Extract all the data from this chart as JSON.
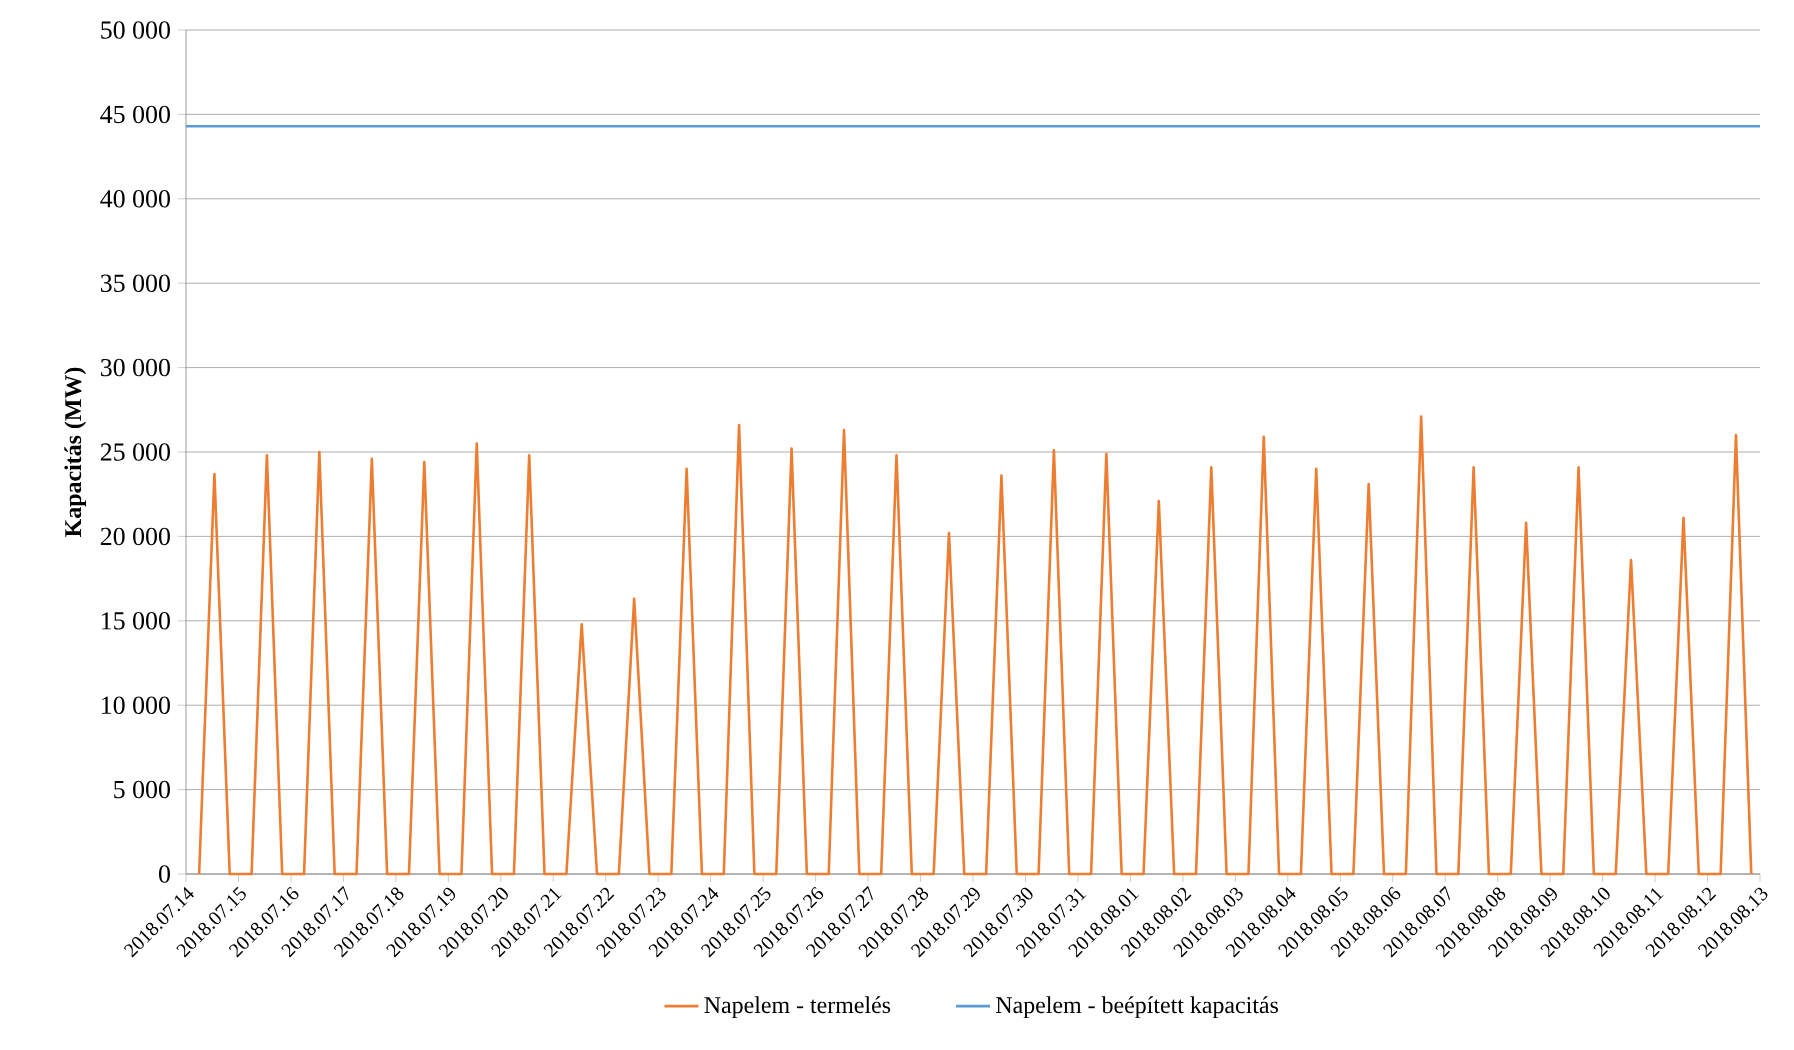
{
  "chart_data": {
    "type": "line",
    "ylabel": "Kapacitás (MW)",
    "xlim": [
      "2018-07-14",
      "2018-08-13"
    ],
    "xticks": [
      {
        "value": "2018-07-14",
        "label": "2018.07.14"
      },
      {
        "value": "2018-07-15",
        "label": "2018.07.15"
      },
      {
        "value": "2018-07-16",
        "label": "2018.07.16"
      },
      {
        "value": "2018-07-17",
        "label": "2018.07.17"
      },
      {
        "value": "2018-07-18",
        "label": "2018.07.18"
      },
      {
        "value": "2018-07-19",
        "label": "2018.07.19"
      },
      {
        "value": "2018-07-20",
        "label": "2018.07.20"
      },
      {
        "value": "2018-07-21",
        "label": "2018.07.21"
      },
      {
        "value": "2018-07-22",
        "label": "2018.07.22"
      },
      {
        "value": "2018-07-23",
        "label": "2018.07.23"
      },
      {
        "value": "2018-07-24",
        "label": "2018.07.24"
      },
      {
        "value": "2018-07-25",
        "label": "2018.07.25"
      },
      {
        "value": "2018-07-26",
        "label": "2018.07.26"
      },
      {
        "value": "2018-07-27",
        "label": "2018.07.27"
      },
      {
        "value": "2018-07-28",
        "label": "2018.07.28"
      },
      {
        "value": "2018-07-29",
        "label": "2018.07.29"
      },
      {
        "value": "2018-07-30",
        "label": "2018.07.30"
      },
      {
        "value": "2018-07-31",
        "label": "2018.07.31"
      },
      {
        "value": "2018-08-01",
        "label": "2018.08.01"
      },
      {
        "value": "2018-08-02",
        "label": "2018.08.02"
      },
      {
        "value": "2018-08-03",
        "label": "2018.08.03"
      },
      {
        "value": "2018-08-04",
        "label": "2018.08.04"
      },
      {
        "value": "2018-08-05",
        "label": "2018.08.05"
      },
      {
        "value": "2018-08-06",
        "label": "2018.08.06"
      },
      {
        "value": "2018-08-07",
        "label": "2018.08.07"
      },
      {
        "value": "2018-08-08",
        "label": "2018.08.08"
      },
      {
        "value": "2018-08-09",
        "label": "2018.08.09"
      },
      {
        "value": "2018-08-10",
        "label": "2018.08.10"
      },
      {
        "value": "2018-08-11",
        "label": "2018.08.11"
      },
      {
        "value": "2018-08-12",
        "label": "2018.08.12"
      },
      {
        "value": "2018-08-13",
        "label": "2018.08.13"
      }
    ],
    "ylim": [
      0,
      50000
    ],
    "yticks": [
      0,
      {
        "value": 5000,
        "label": "5 000"
      },
      {
        "value": 10000,
        "label": "10 000"
      },
      {
        "value": 15000,
        "label": "15 000"
      },
      {
        "value": 20000,
        "label": "20 000"
      },
      {
        "value": 25000,
        "label": "25 000"
      },
      {
        "value": 30000,
        "label": "30 000"
      },
      {
        "value": 35000,
        "label": "35 000"
      },
      {
        "value": 40000,
        "label": "40 000"
      },
      {
        "value": 45000,
        "label": "45 000"
      },
      {
        "value": 50000,
        "label": "50 000"
      }
    ],
    "grid": "y",
    "legend": "bottom",
    "marker": "none",
    "series": [
      {
        "name": "Napelem - termelés",
        "color": "#ed7d31",
        "x": [
          "2018-07-14T06:00",
          "2018-07-14T09:30",
          "2018-07-14T13:00",
          "2018-07-14T16:30",
          "2018-07-14T20:00",
          "2018-07-15T06:00",
          "2018-07-15T09:30",
          "2018-07-15T13:00",
          "2018-07-15T16:30",
          "2018-07-15T20:00",
          "2018-07-16T06:00",
          "2018-07-16T09:30",
          "2018-07-16T13:00",
          "2018-07-16T16:30",
          "2018-07-16T20:00",
          "2018-07-17T06:00",
          "2018-07-17T09:30",
          "2018-07-17T13:00",
          "2018-07-17T16:30",
          "2018-07-17T20:00",
          "2018-07-18T06:00",
          "2018-07-18T09:30",
          "2018-07-18T13:00",
          "2018-07-18T16:30",
          "2018-07-18T20:00",
          "2018-07-19T06:00",
          "2018-07-19T09:30",
          "2018-07-19T13:00",
          "2018-07-19T16:30",
          "2018-07-19T20:00",
          "2018-07-20T06:00",
          "2018-07-20T09:30",
          "2018-07-20T13:00",
          "2018-07-20T16:30",
          "2018-07-20T20:00",
          "2018-07-21T06:00",
          "2018-07-21T09:30",
          "2018-07-21T13:00",
          "2018-07-21T16:30",
          "2018-07-21T20:00",
          "2018-07-22T06:00",
          "2018-07-22T09:30",
          "2018-07-22T13:00",
          "2018-07-22T16:30",
          "2018-07-22T20:00",
          "2018-07-23T06:00",
          "2018-07-23T09:30",
          "2018-07-23T13:00",
          "2018-07-23T16:30",
          "2018-07-23T20:00",
          "2018-07-24T06:00",
          "2018-07-24T09:30",
          "2018-07-24T13:00",
          "2018-07-24T16:30",
          "2018-07-24T20:00",
          "2018-07-25T06:00",
          "2018-07-25T09:30",
          "2018-07-25T13:00",
          "2018-07-25T16:30",
          "2018-07-25T20:00",
          "2018-07-26T06:00",
          "2018-07-26T09:30",
          "2018-07-26T13:00",
          "2018-07-26T16:30",
          "2018-07-26T20:00",
          "2018-07-27T06:00",
          "2018-07-27T09:30",
          "2018-07-27T13:00",
          "2018-07-27T16:30",
          "2018-07-27T20:00",
          "2018-07-28T06:00",
          "2018-07-28T09:30",
          "2018-07-28T13:00",
          "2018-07-28T16:30",
          "2018-07-28T20:00",
          "2018-07-29T06:00",
          "2018-07-29T09:30",
          "2018-07-29T13:00",
          "2018-07-29T16:30",
          "2018-07-29T20:00",
          "2018-07-30T06:00",
          "2018-07-30T09:30",
          "2018-07-30T13:00",
          "2018-07-30T16:30",
          "2018-07-30T20:00",
          "2018-07-31T06:00",
          "2018-07-31T09:30",
          "2018-07-31T13:00",
          "2018-07-31T16:30",
          "2018-07-31T20:00",
          "2018-08-01T06:00",
          "2018-08-01T09:30",
          "2018-08-01T13:00",
          "2018-08-01T16:30",
          "2018-08-01T20:00",
          "2018-08-02T06:00",
          "2018-08-02T09:30",
          "2018-08-02T13:00",
          "2018-08-02T16:30",
          "2018-08-02T20:00",
          "2018-08-03T06:00",
          "2018-08-03T09:30",
          "2018-08-03T13:00",
          "2018-08-03T16:30",
          "2018-08-03T20:00",
          "2018-08-04T06:00",
          "2018-08-04T09:30",
          "2018-08-04T13:00",
          "2018-08-04T16:30",
          "2018-08-04T20:00",
          "2018-08-05T06:00",
          "2018-08-05T09:30",
          "2018-08-05T13:00",
          "2018-08-05T16:30",
          "2018-08-05T20:00",
          "2018-08-06T06:00",
          "2018-08-06T09:30",
          "2018-08-06T13:00",
          "2018-08-06T16:30",
          "2018-08-06T20:00",
          "2018-08-07T06:00",
          "2018-08-07T09:30",
          "2018-08-07T13:00",
          "2018-08-07T16:30",
          "2018-08-07T20:00",
          "2018-08-08T06:00",
          "2018-08-08T09:30",
          "2018-08-08T13:00",
          "2018-08-08T16:30",
          "2018-08-08T20:00",
          "2018-08-09T06:00",
          "2018-08-09T09:30",
          "2018-08-09T13:00",
          "2018-08-09T16:30",
          "2018-08-09T20:00",
          "2018-08-10T06:00",
          "2018-08-10T09:30",
          "2018-08-10T13:00",
          "2018-08-10T16:30",
          "2018-08-10T20:00",
          "2018-08-11T06:00",
          "2018-08-11T09:30",
          "2018-08-11T13:00",
          "2018-08-11T16:30",
          "2018-08-11T20:00",
          "2018-08-12T06:00",
          "2018-08-12T09:30",
          "2018-08-12T13:00",
          "2018-08-12T16:30",
          "2018-08-12T20:00"
        ],
        "values": [
          0,
          11850,
          23700,
          11850,
          0,
          0,
          12400,
          24800,
          12400,
          0,
          0,
          12500,
          25000,
          12500,
          0,
          0,
          12300,
          24600,
          12300,
          0,
          0,
          12200,
          24400,
          12200,
          0,
          0,
          12750,
          25500,
          12750,
          0,
          0,
          12400,
          24800,
          12400,
          0,
          0,
          7400,
          14800,
          7400,
          0,
          0,
          8150,
          16300,
          8150,
          0,
          0,
          12000,
          24000,
          12000,
          0,
          0,
          13300,
          26600,
          13300,
          0,
          0,
          12600,
          25200,
          12600,
          0,
          0,
          13150,
          26300,
          13150,
          0,
          0,
          12400,
          24800,
          12400,
          0,
          0,
          10100,
          20200,
          10100,
          0,
          0,
          11800,
          23600,
          11800,
          0,
          0,
          12550,
          25100,
          12550,
          0,
          0,
          12450,
          24900,
          12450,
          0,
          0,
          11050,
          22100,
          11050,
          0,
          0,
          12050,
          24100,
          12050,
          0,
          0,
          12950,
          25900,
          12950,
          0,
          0,
          12000,
          24000,
          12000,
          0,
          0,
          11550,
          23100,
          11550,
          0,
          0,
          13550,
          27100,
          13550,
          0,
          0,
          12050,
          24100,
          12050,
          0,
          0,
          10400,
          20800,
          10400,
          0,
          0,
          12050,
          24100,
          12050,
          0,
          0,
          9300,
          18600,
          9300,
          0,
          0,
          10550,
          21100,
          10550,
          0,
          0,
          13000,
          26000,
          13000,
          0
        ]
      },
      {
        "name": "Napelem - beépített kapacitás",
        "color": "#5b9bd5",
        "x": [
          "2018-07-14",
          "2018-08-13"
        ],
        "values": [
          44300,
          44300
        ]
      }
    ]
  }
}
